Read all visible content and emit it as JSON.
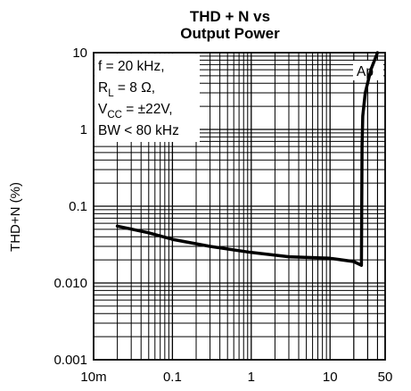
{
  "chart_data": {
    "type": "line",
    "title_line1": "THD + N vs",
    "title_line2": "Output Power",
    "ylabel": "THD+N (%)",
    "xlabel": "",
    "x_scale": "log",
    "y_scale": "log",
    "xlim": [
      0.01,
      50
    ],
    "ylim": [
      0.001,
      10
    ],
    "grid": true,
    "x_ticks": [
      {
        "value": 0.01,
        "label": "10m"
      },
      {
        "value": 0.1,
        "label": "0.1"
      },
      {
        "value": 1,
        "label": "1"
      },
      {
        "value": 10,
        "label": "10"
      },
      {
        "value": 50,
        "label": "50"
      }
    ],
    "y_ticks": [
      {
        "value": 0.001,
        "label": "0.001"
      },
      {
        "value": 0.01,
        "label": "0.010"
      },
      {
        "value": 0.1,
        "label": "0.1"
      },
      {
        "value": 1,
        "label": "1"
      },
      {
        "value": 10,
        "label": "10"
      }
    ],
    "conditions": [
      "f = 20 kHz,",
      "RL = 8 Ω,",
      "VCC = ±22V,",
      "BW < 80 kHz"
    ],
    "conditions_parts": [
      {
        "main": "f = 20 kHz,",
        "sub": "",
        "rest": ""
      },
      {
        "main": "R",
        "sub": "L",
        "rest": " = 8 Ω,"
      },
      {
        "main": "V",
        "sub": "CC",
        "rest": " = ±22V,"
      },
      {
        "main": "BW < 80 kHz",
        "sub": "",
        "rest": ""
      }
    ],
    "series": [
      {
        "name": "Ap",
        "x": [
          0.02,
          0.05,
          0.1,
          0.3,
          1,
          3,
          10,
          20,
          25,
          25.5,
          26,
          28,
          33,
          40
        ],
        "y": [
          0.055,
          0.045,
          0.037,
          0.03,
          0.025,
          0.022,
          0.021,
          0.019,
          0.017,
          0.6,
          1.5,
          3,
          6,
          10
        ]
      }
    ]
  }
}
